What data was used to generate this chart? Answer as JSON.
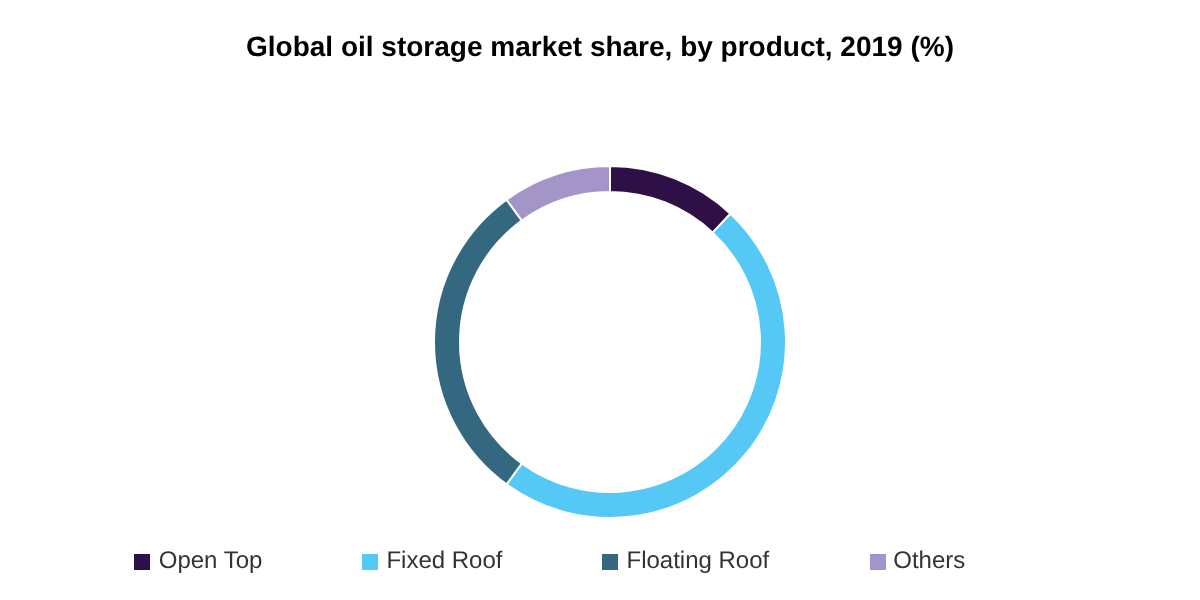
{
  "chart_data": {
    "type": "donut",
    "title": "Global oil storage market share, by product, 2019 (%)",
    "categories": [
      "Open Top",
      "Fixed Roof",
      "Floating Roof",
      "Others"
    ],
    "values": [
      12,
      48,
      30,
      10
    ],
    "colors": [
      "#2e0f46",
      "#55c8f5",
      "#346880",
      "#a495c9"
    ],
    "legend": "bottom"
  }
}
